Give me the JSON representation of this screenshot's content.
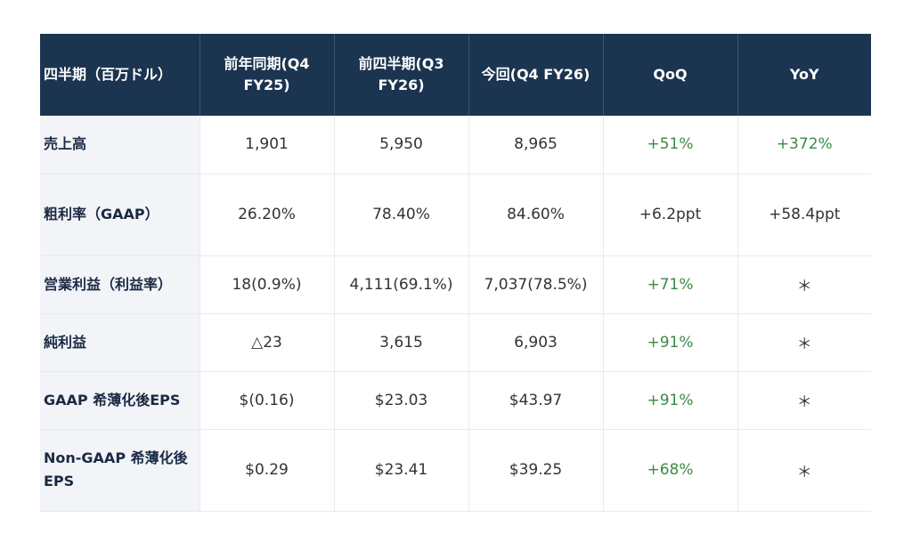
{
  "table": {
    "headers": [
      "四半期（百万ドル）",
      "前年同期(Q4 FY25)",
      "前四半期(Q3 FY26)",
      "今回(Q4 FY26)",
      "QoQ",
      "YoY"
    ],
    "rows": [
      {
        "label": "売上高",
        "cells": [
          "1,901",
          "5,950",
          "8,965",
          "+51%",
          "+372%"
        ],
        "qoq_trend": "positive",
        "yoy_trend": "positive"
      },
      {
        "label": "粗利率（GAAP）",
        "cells": [
          "26.20%",
          "78.40%",
          "84.60%",
          "+6.2ppt",
          "+58.4ppt"
        ],
        "qoq_trend": "neutral",
        "yoy_trend": "neutral"
      },
      {
        "label": "営業利益（利益率）",
        "cells": [
          "18(0.9%)",
          "4,111(69.1%)",
          "7,037(78.5%)",
          "+71%",
          "＊"
        ],
        "qoq_trend": "positive",
        "yoy_trend": "neutral"
      },
      {
        "label": "純利益",
        "cells": [
          "△23",
          "3,615",
          "6,903",
          "+91%",
          "＊"
        ],
        "qoq_trend": "positive",
        "yoy_trend": "neutral"
      },
      {
        "label": "GAAP 希薄化後EPS",
        "cells": [
          "$(0.16)",
          "$23.03",
          "$43.97",
          "+91%",
          "＊"
        ],
        "qoq_trend": "positive",
        "yoy_trend": "neutral"
      },
      {
        "label": "Non-GAAP 希薄化後EPS",
        "cells": [
          "$0.29",
          "$23.41",
          "$39.25",
          "+68%",
          "＊"
        ],
        "qoq_trend": "positive",
        "yoy_trend": "neutral"
      }
    ]
  },
  "colors": {
    "header_bg": "#1b3450",
    "label_bg": "#f2f4f8",
    "positive": "#3a8a46",
    "text": "#333333"
  }
}
